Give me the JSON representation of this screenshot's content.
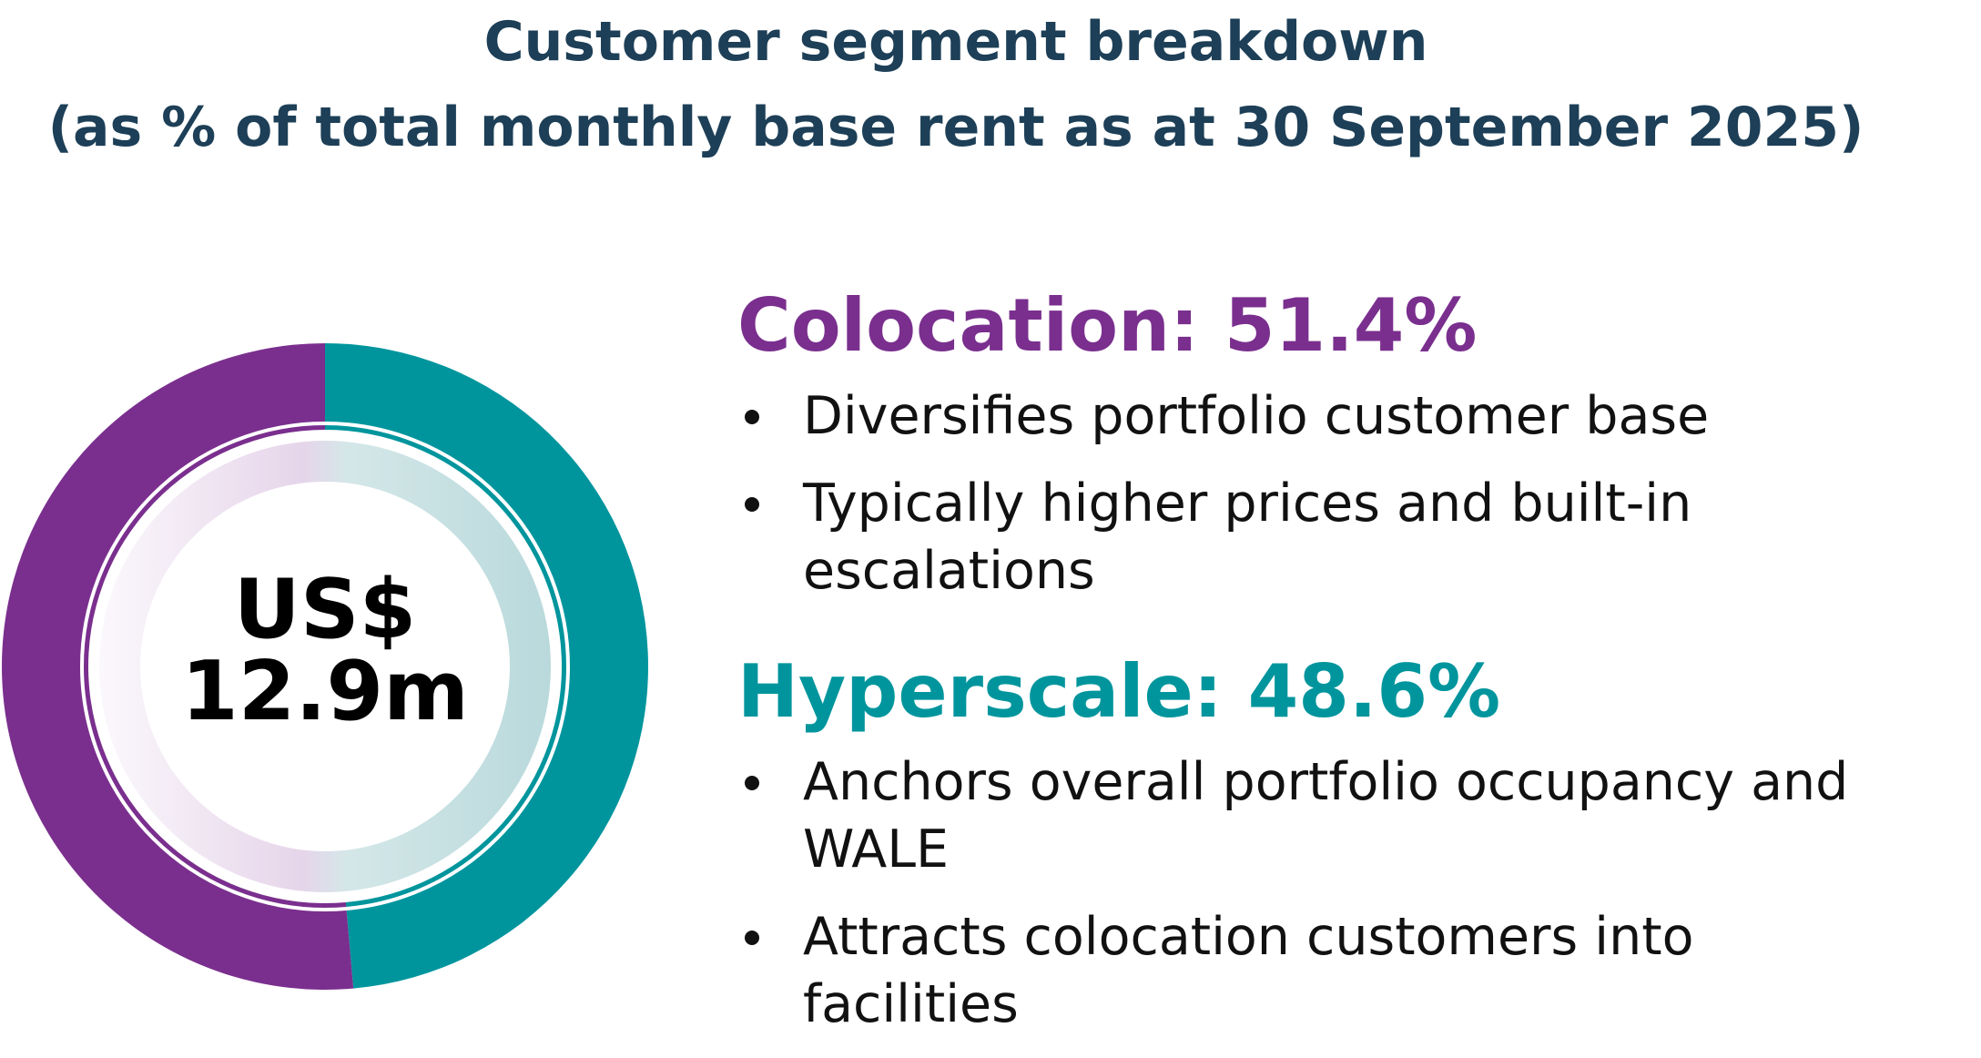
{
  "title": {
    "line1": "Customer segment breakdown",
    "line2": "(as % of total monthly base rent as at 30 September 2025)"
  },
  "center": {
    "line1": "US$",
    "line2": "12.9m"
  },
  "colors": {
    "title": "#1d3f57",
    "colocation": "#7a2f8e",
    "hyperscale": "#00959d",
    "text": "#111111"
  },
  "segments": [
    {
      "heading": "Colocation: 51.4%",
      "bullets": [
        "Diversifies portfolio customer base",
        "Typically higher prices and built-in escalations"
      ]
    },
    {
      "heading": "Hyperscale: 48.6%",
      "bullets": [
        "Anchors overall portfolio occupancy and WALE",
        "Attracts colocation customers into facilities"
      ]
    }
  ],
  "chart_data": {
    "type": "pie",
    "title": "Customer segment breakdown",
    "subtitle": "(as % of total monthly base rent as at 30 September 2025)",
    "categories": [
      "Colocation",
      "Hyperscale"
    ],
    "values": [
      51.4,
      48.6
    ],
    "colors": [
      "#7a2f8e",
      "#00959d"
    ],
    "center_label": "US$ 12.9m",
    "legend": "right"
  }
}
